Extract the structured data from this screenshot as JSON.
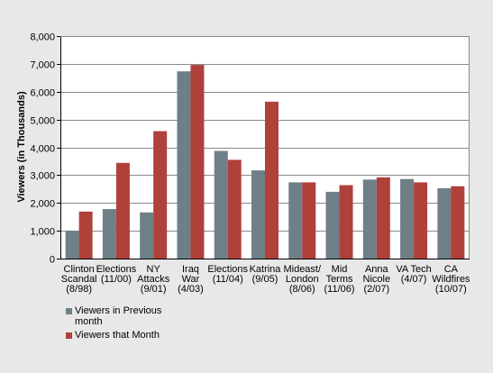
{
  "chart_data": {
    "type": "bar",
    "title": "",
    "ylabel": "Viewers (in Thousands)",
    "xlabel": "",
    "ylim": [
      0,
      8000
    ],
    "yticks": [
      "0",
      "1,000",
      "2,000",
      "3,000",
      "4,000",
      "5,000",
      "6,000",
      "7,000",
      "8,000"
    ],
    "grid": true,
    "legend_position": "bottom-left",
    "categories": [
      [
        "Clinton",
        "Scandal",
        "(8/98)"
      ],
      [
        "Elections",
        "(11/00)"
      ],
      [
        "NY",
        "Attacks",
        "(9/01)"
      ],
      [
        "Iraq",
        "War",
        "(4/03)"
      ],
      [
        "Elections",
        "(11/04)"
      ],
      [
        "Katrina",
        "(9/05)"
      ],
      [
        "Mideast/",
        "London",
        "(8/06)"
      ],
      [
        "Mid",
        "Terms",
        "(11/06)"
      ],
      [
        "Anna",
        "Nicole",
        "(2/07)"
      ],
      [
        "VA Tech",
        "(4/07)"
      ],
      [
        "CA",
        "Wildfires",
        "(10/07)"
      ]
    ],
    "series": [
      {
        "name": "Viewers in Previous month",
        "color": "#6e7f87",
        "values": [
          1000,
          1780,
          1660,
          6730,
          3870,
          3170,
          2740,
          2400,
          2840,
          2860,
          2530
        ]
      },
      {
        "name": "Viewers that Month",
        "color": "#b0403a",
        "values": [
          1690,
          3440,
          4580,
          6960,
          3550,
          5640,
          2740,
          2640,
          2920,
          2740,
          2600
        ]
      }
    ]
  }
}
